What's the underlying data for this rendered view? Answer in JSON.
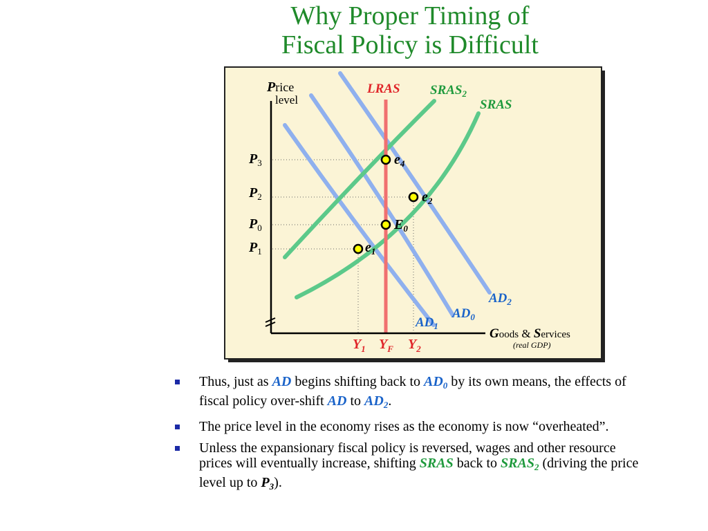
{
  "title": {
    "line1": "Why Proper Timing of",
    "line2": "Fiscal Policy is Difficult"
  },
  "chart": {
    "y_axis_label": {
      "cap": "P",
      "rest": "rice",
      "line2": "level"
    },
    "x_axis_label": {
      "cap1": "G",
      "rest1": "oods",
      "amp": " & ",
      "cap2": "S",
      "rest2": "ervices",
      "sub": "(real GDP)"
    },
    "curves": {
      "lras": "LRAS",
      "sras2": {
        "main": "SRAS",
        "sub": "2"
      },
      "sras": "SRAS",
      "ad2": {
        "main": "AD",
        "sub": "2"
      },
      "ad0": {
        "main": "AD",
        "sub": "0"
      },
      "ad1": {
        "main": "AD",
        "sub": "1"
      }
    },
    "price_labels": [
      {
        "main": "P",
        "sub": "3"
      },
      {
        "main": "P",
        "sub": "2"
      },
      {
        "main": "P",
        "sub": "0"
      },
      {
        "main": "P",
        "sub": "1"
      }
    ],
    "quantity_labels": [
      {
        "main": "Y",
        "sub": "1"
      },
      {
        "main": "Y",
        "sub": "F"
      },
      {
        "main": "Y",
        "sub": "2"
      }
    ],
    "points": [
      {
        "main": "e",
        "sub": "4"
      },
      {
        "main": "e",
        "sub": "2"
      },
      {
        "main": "E",
        "sub": "0"
      },
      {
        "main": "e",
        "sub": "1"
      }
    ],
    "colors": {
      "lras": "#f07070",
      "sras": "#5cc98a",
      "ad": "#8fb0ee",
      "point_fill": "#ffff00",
      "lras_label": "#e0262a",
      "sras_label": "#1f9a3d",
      "ad_label": "#1a63c9",
      "q_label": "#e0262a"
    }
  },
  "bullets": [
    {
      "t1": "Thus, just as",
      "ad_a": "AD",
      "t2": "begins shifting back to",
      "ad_b": "AD",
      "ad_b_sub": "0",
      "t3": "by its own means, the effects of fiscal policy over-shift",
      "ad_c": "AD",
      "t4": "to",
      "ad_d": "AD",
      "ad_d_sub": "2",
      "t5": "."
    },
    {
      "text": "The price level in the economy rises as the economy is now “overheated”."
    },
    {
      "t1": "Unless the expansionary fiscal policy is reversed, wages and other resource prices will eventually increase, shifting",
      "sras_a": "SRAS",
      "t2": "back to",
      "sras_b": "SRAS",
      "sras_b_sub": "2",
      "t3": "(driving the price level up to",
      "p": "P",
      "p_sub": "3",
      "t4": ")."
    }
  ]
}
